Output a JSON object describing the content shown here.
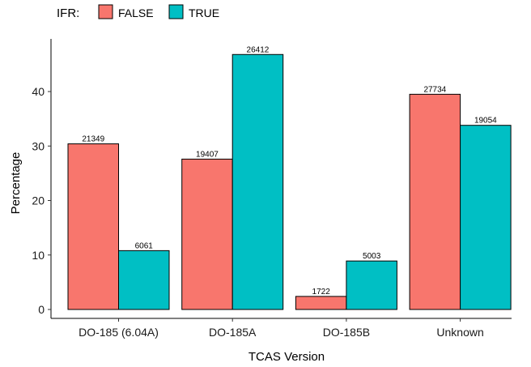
{
  "chart_data": {
    "type": "bar",
    "categories": [
      "DO-185 (6.04A)",
      "DO-185A",
      "DO-185B",
      "Unknown"
    ],
    "series": [
      {
        "name": "FALSE",
        "color": "#F8766D",
        "values": [
          30.4,
          27.6,
          2.4,
          39.5
        ],
        "labels": [
          "21349",
          "19407",
          "1722",
          "27734"
        ]
      },
      {
        "name": "TRUE",
        "color": "#00BFC4",
        "values": [
          10.8,
          46.8,
          8.9,
          33.8
        ],
        "labels": [
          "6061",
          "26412",
          "5003",
          "19054"
        ]
      }
    ],
    "xlabel": "TCAS Version",
    "ylabel": "Percentage",
    "ylim": [
      0,
      49
    ],
    "yticks": [
      0,
      10,
      20,
      30,
      40
    ],
    "legend": {
      "title": "IFR:",
      "position": "top-left"
    },
    "grid": false
  }
}
